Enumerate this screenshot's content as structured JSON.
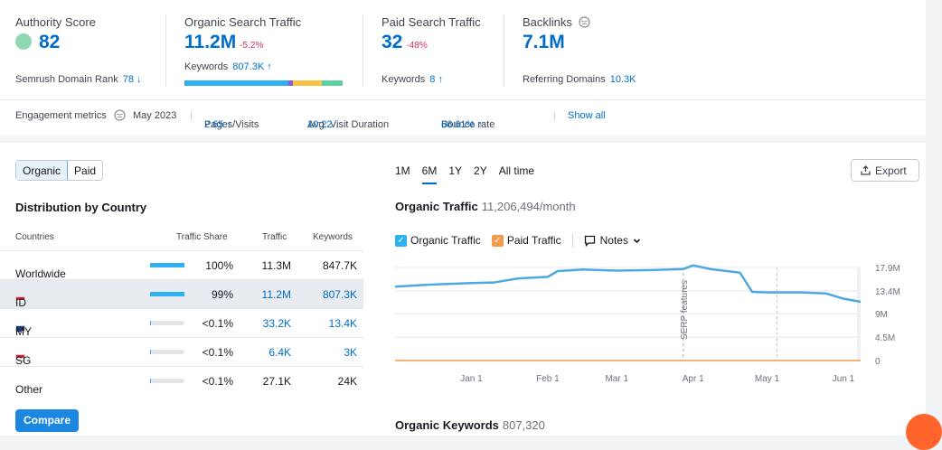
{
  "metrics": {
    "authority": {
      "label": "Authority Score",
      "value": "82",
      "sub_label": "Semrush Domain Rank",
      "sub_value": "78 ↓"
    },
    "organic": {
      "label": "Organic Search Traffic",
      "value": "11.2M",
      "delta": "-5.2%",
      "sub_label": "Keywords",
      "sub_value": "807.3K ↑"
    },
    "paid": {
      "label": "Paid Search Traffic",
      "value": "32",
      "delta": "-48%",
      "sub_label": "Keywords",
      "sub_value": "8 ↑"
    },
    "backlinks": {
      "label": "Backlinks",
      "value": "7.1M",
      "sub_label": "Referring Domains",
      "sub_value": "10.3K"
    }
  },
  "engagement": {
    "label": "Engagement metrics",
    "date": "May 2023",
    "pages_label": "Pages/Visits",
    "pages_value": "2.65 ↑",
    "duration_label": "Avg. Visit Duration",
    "duration_value": "10:22 ↓",
    "bounce_label": "Bounce rate",
    "bounce_value": "66.61% ↑",
    "show_all": "Show all"
  },
  "toggle": {
    "organic": "Organic",
    "paid": "Paid"
  },
  "distribution": {
    "title": "Distribution by Country",
    "headers": {
      "countries": "Countries",
      "share": "Traffic Share",
      "traffic": "Traffic",
      "keywords": "Keywords"
    },
    "rows": [
      {
        "country": "Worldwide",
        "share": "100%",
        "share_pct": 100,
        "traffic": "11.3M",
        "keywords": "847.7K"
      },
      {
        "country": "ID",
        "share": "99%",
        "share_pct": 99,
        "traffic": "11.2M",
        "keywords": "807.3K"
      },
      {
        "country": "MY",
        "share": "<0.1%",
        "share_pct": 0.1,
        "traffic": "33.2K",
        "keywords": "13.4K"
      },
      {
        "country": "SG",
        "share": "<0.1%",
        "share_pct": 0.1,
        "traffic": "6.4K",
        "keywords": "3K"
      },
      {
        "country": "Other",
        "share": "<0.1%",
        "share_pct": 0.1,
        "traffic": "27.1K",
        "keywords": "24K"
      }
    ],
    "compare": "Compare"
  },
  "ranges": [
    "1M",
    "6M",
    "1Y",
    "2Y",
    "All time"
  ],
  "active_range": "6M",
  "export_label": "Export",
  "chart_title": "Organic Traffic",
  "chart_subtitle": "11,206,494/month",
  "legend": {
    "organic": "Organic Traffic",
    "paid": "Paid Traffic",
    "notes": "Notes"
  },
  "keywords_title": "Organic Keywords",
  "keywords_count": "807,320",
  "colors": {
    "accent": "#006dca",
    "organic": "#4ea8e0",
    "paid": "#f29b4a",
    "negative": "#d3305a"
  },
  "chart_data": {
    "type": "line",
    "title": "Organic Traffic",
    "x_labels": [
      "Jan 1",
      "Feb 1",
      "Mar 1",
      "Apr 1",
      "May 1",
      "Jun 1"
    ],
    "y_ticks": [
      "0",
      "4.5M",
      "9M",
      "13.4M",
      "17.9M"
    ],
    "ylim": [
      0,
      17.9
    ],
    "grid": true,
    "annotation": "SERP features",
    "series": [
      {
        "name": "Organic Traffic",
        "x": [
          "2022-12-01",
          "2022-12-15",
          "2023-01-01",
          "2023-01-10",
          "2023-01-20",
          "2023-02-01",
          "2023-02-05",
          "2023-02-15",
          "2023-03-01",
          "2023-03-15",
          "2023-03-28",
          "2023-04-01",
          "2023-04-08",
          "2023-04-20",
          "2023-04-25",
          "2023-05-01",
          "2023-05-15",
          "2023-05-25",
          "2023-06-01",
          "2023-06-08"
        ],
        "y": [
          14.2,
          14.6,
          14.9,
          15.0,
          15.8,
          16.1,
          17.2,
          17.5,
          17.3,
          17.4,
          17.6,
          18.3,
          17.6,
          16.9,
          13.2,
          13.1,
          13.1,
          12.9,
          11.9,
          11.3
        ]
      },
      {
        "name": "Paid Traffic",
        "x": [
          "2022-12-01",
          "2023-06-08"
        ],
        "y": [
          0,
          0
        ]
      }
    ]
  }
}
